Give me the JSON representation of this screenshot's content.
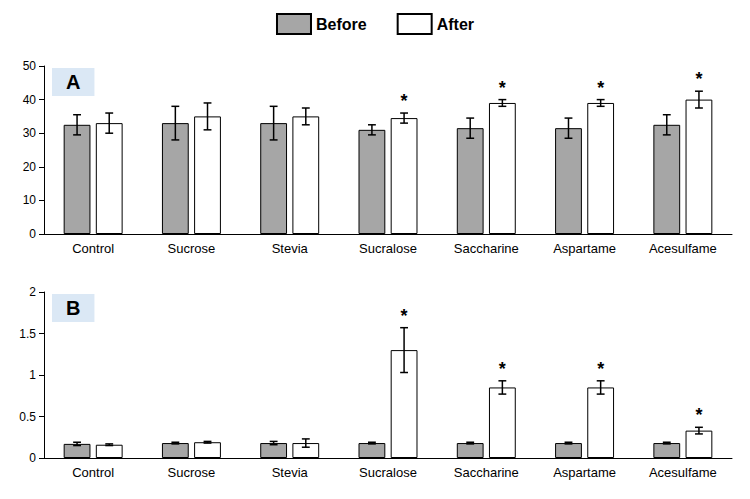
{
  "chart_data": [
    {
      "type": "bar",
      "title": "A",
      "legend": "top",
      "grid": false,
      "categories": [
        "Control",
        "Sucrose",
        "Stevia",
        "Sucralose",
        "Saccharine",
        "Aspartame",
        "Acesulfame"
      ],
      "ylim": [
        0,
        50
      ],
      "yticks": [
        0,
        10,
        20,
        30,
        40,
        50
      ],
      "series": [
        {
          "name": "Before",
          "color": "#a6a6a6",
          "values": [
            32.5,
            33,
            33,
            31,
            31.5,
            31.5,
            32.5
          ],
          "errors": [
            3,
            5,
            5,
            1.5,
            3,
            3,
            3
          ]
        },
        {
          "name": "After",
          "color": "#ffffff",
          "values": [
            33,
            35,
            35,
            34.5,
            39,
            39,
            40
          ],
          "errors": [
            3,
            4,
            2.5,
            1.5,
            1,
            1,
            2.5
          ],
          "annotations": [
            null,
            null,
            null,
            "*",
            "*",
            "*",
            "*"
          ]
        }
      ]
    },
    {
      "type": "bar",
      "title": "B",
      "grid": false,
      "categories": [
        "Control",
        "Sucrose",
        "Stevia",
        "Sucralose",
        "Saccharine",
        "Aspartame",
        "Acesulfame"
      ],
      "ylim": [
        0,
        2
      ],
      "yticks": [
        0,
        0.5,
        1,
        1.5,
        2
      ],
      "series": [
        {
          "name": "Before",
          "color": "#a6a6a6",
          "values": [
            0.17,
            0.18,
            0.18,
            0.18,
            0.18,
            0.18,
            0.18
          ],
          "errors": [
            0.02,
            0.01,
            0.02,
            0.01,
            0.01,
            0.01,
            0.01
          ]
        },
        {
          "name": "After",
          "color": "#ffffff",
          "values": [
            0.16,
            0.19,
            0.18,
            1.3,
            0.85,
            0.85,
            0.33
          ],
          "errors": [
            0.01,
            0.01,
            0.05,
            0.27,
            0.08,
            0.08,
            0.04
          ],
          "annotations": [
            null,
            null,
            null,
            "*",
            "*",
            "*",
            "*"
          ]
        }
      ]
    }
  ]
}
